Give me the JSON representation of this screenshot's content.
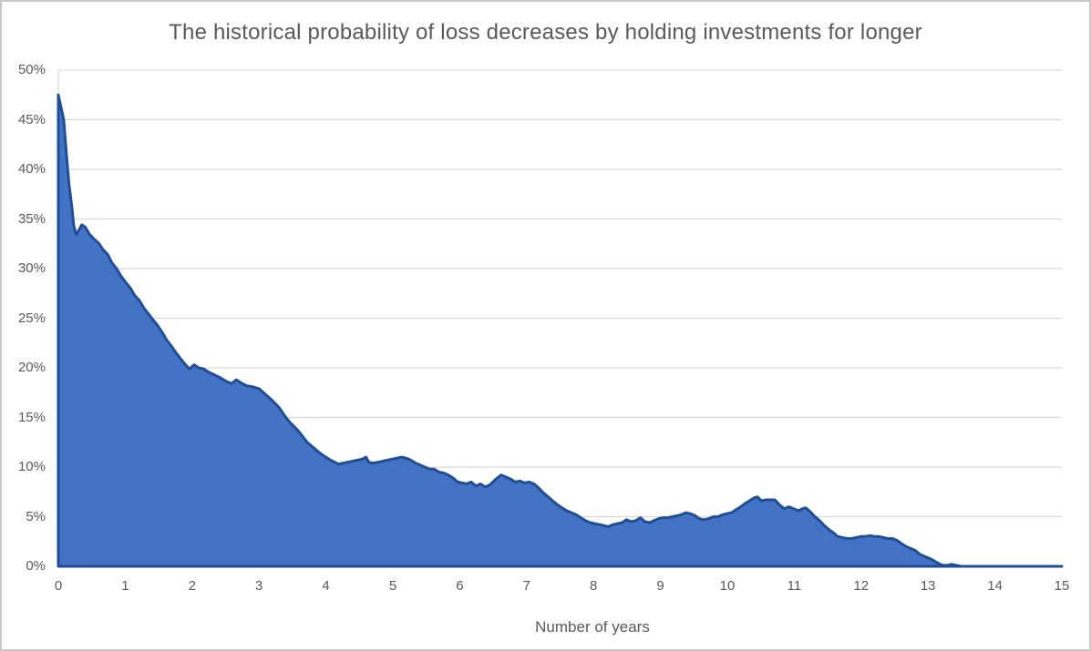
{
  "frame": {
    "background": "#ffffff",
    "border_color": "#c9c9c9"
  },
  "chart_data": {
    "type": "area",
    "title": "The historical probability of loss decreases by holding investments for longer",
    "xlabel": "Number of years",
    "ylabel": "",
    "xlim": [
      0,
      15
    ],
    "ylim": [
      0,
      50
    ],
    "x_ticks": [
      0,
      1,
      2,
      3,
      4,
      5,
      6,
      7,
      8,
      9,
      10,
      11,
      12,
      13,
      14,
      15
    ],
    "x_tick_labels": [
      "0",
      "1",
      "2",
      "3",
      "4",
      "5",
      "6",
      "7",
      "8",
      "9",
      "10",
      "11",
      "12",
      "13",
      "14",
      "15"
    ],
    "y_ticks": [
      0,
      5,
      10,
      15,
      20,
      25,
      30,
      35,
      40,
      45,
      50
    ],
    "y_tick_labels": [
      "0%",
      "5%",
      "10%",
      "15%",
      "20%",
      "25%",
      "30%",
      "35%",
      "40%",
      "45%",
      "50%"
    ],
    "grid": true,
    "legend": false,
    "styles": {
      "area_fill": "#4472c4",
      "area_line": "#1f4e96",
      "grid_color": "#d9d9d9",
      "baseline_color": "#a0a0a0",
      "yaxis_line_color": "#d9d9d9",
      "text_color": "#595959"
    },
    "series": [
      {
        "points": [
          [
            0,
            47.5
          ],
          [
            0.08,
            45
          ],
          [
            0.12,
            41.6
          ],
          [
            0.16,
            38.5
          ],
          [
            0.2,
            36.3
          ],
          [
            0.23,
            34.3
          ],
          [
            0.27,
            33.4
          ],
          [
            0.31,
            33.9
          ],
          [
            0.35,
            34.4
          ],
          [
            0.4,
            34.2
          ],
          [
            0.46,
            33.5
          ],
          [
            0.53,
            33
          ],
          [
            0.6,
            32.6
          ],
          [
            0.67,
            31.9
          ],
          [
            0.74,
            31.4
          ],
          [
            0.8,
            30.6
          ],
          [
            0.87,
            30
          ],
          [
            0.94,
            29.2
          ],
          [
            1.01,
            28.6
          ],
          [
            1.08,
            28
          ],
          [
            1.14,
            27.3
          ],
          [
            1.21,
            26.8
          ],
          [
            1.28,
            26
          ],
          [
            1.35,
            25.4
          ],
          [
            1.42,
            24.8
          ],
          [
            1.48,
            24.3
          ],
          [
            1.55,
            23.6
          ],
          [
            1.62,
            22.8
          ],
          [
            1.69,
            22.2
          ],
          [
            1.76,
            21.5
          ],
          [
            1.83,
            20.9
          ],
          [
            1.9,
            20.3
          ],
          [
            1.96,
            19.9
          ],
          [
            2.03,
            20.3
          ],
          [
            2.1,
            20
          ],
          [
            2.17,
            19.9
          ],
          [
            2.24,
            19.6
          ],
          [
            2.33,
            19.3
          ],
          [
            2.42,
            19
          ],
          [
            2.52,
            18.6
          ],
          [
            2.59,
            18.4
          ],
          [
            2.66,
            18.8
          ],
          [
            2.73,
            18.5
          ],
          [
            2.81,
            18.2
          ],
          [
            2.9,
            18.1
          ],
          [
            3,
            17.9
          ],
          [
            3.1,
            17.3
          ],
          [
            3.2,
            16.7
          ],
          [
            3.3,
            16
          ],
          [
            3.38,
            15.2
          ],
          [
            3.45,
            14.6
          ],
          [
            3.52,
            14.1
          ],
          [
            3.58,
            13.7
          ],
          [
            3.65,
            13.1
          ],
          [
            3.72,
            12.5
          ],
          [
            3.79,
            12.1
          ],
          [
            3.86,
            11.7
          ],
          [
            3.93,
            11.3
          ],
          [
            4,
            11
          ],
          [
            4.07,
            10.7
          ],
          [
            4.13,
            10.5
          ],
          [
            4.19,
            10.3
          ],
          [
            4.26,
            10.4
          ],
          [
            4.33,
            10.5
          ],
          [
            4.4,
            10.6
          ],
          [
            4.47,
            10.7
          ],
          [
            4.54,
            10.8
          ],
          [
            4.6,
            11
          ],
          [
            4.64,
            10.5
          ],
          [
            4.71,
            10.4
          ],
          [
            4.78,
            10.5
          ],
          [
            4.85,
            10.6
          ],
          [
            4.92,
            10.7
          ],
          [
            4.99,
            10.8
          ],
          [
            5.06,
            10.9
          ],
          [
            5.13,
            11
          ],
          [
            5.2,
            10.9
          ],
          [
            5.27,
            10.7
          ],
          [
            5.34,
            10.4
          ],
          [
            5.41,
            10.2
          ],
          [
            5.48,
            10
          ],
          [
            5.55,
            9.8
          ],
          [
            5.62,
            9.8
          ],
          [
            5.69,
            9.5
          ],
          [
            5.76,
            9.4
          ],
          [
            5.83,
            9.2
          ],
          [
            5.9,
            8.9
          ],
          [
            5.97,
            8.5
          ],
          [
            6.04,
            8.4
          ],
          [
            6.1,
            8.3
          ],
          [
            6.17,
            8.5
          ],
          [
            6.24,
            8.1
          ],
          [
            6.31,
            8.3
          ],
          [
            6.38,
            8
          ],
          [
            6.45,
            8.2
          ],
          [
            6.51,
            8.6
          ],
          [
            6.58,
            9
          ],
          [
            6.62,
            9.2
          ],
          [
            6.69,
            9
          ],
          [
            6.76,
            8.8
          ],
          [
            6.83,
            8.5
          ],
          [
            6.9,
            8.6
          ],
          [
            6.97,
            8.4
          ],
          [
            7.04,
            8.5
          ],
          [
            7.11,
            8.3
          ],
          [
            7.18,
            7.9
          ],
          [
            7.25,
            7.4
          ],
          [
            7.32,
            7
          ],
          [
            7.39,
            6.6
          ],
          [
            7.46,
            6.2
          ],
          [
            7.53,
            5.9
          ],
          [
            7.6,
            5.6
          ],
          [
            7.67,
            5.4
          ],
          [
            7.74,
            5.2
          ],
          [
            7.81,
            4.9
          ],
          [
            7.88,
            4.6
          ],
          [
            7.95,
            4.4
          ],
          [
            8.02,
            4.3
          ],
          [
            8.09,
            4.2
          ],
          [
            8.16,
            4.1
          ],
          [
            8.22,
            4
          ],
          [
            8.29,
            4.2
          ],
          [
            8.36,
            4.3
          ],
          [
            8.43,
            4.4
          ],
          [
            8.49,
            4.7
          ],
          [
            8.56,
            4.5
          ],
          [
            8.63,
            4.6
          ],
          [
            8.7,
            4.9
          ],
          [
            8.77,
            4.5
          ],
          [
            8.84,
            4.4
          ],
          [
            8.9,
            4.6
          ],
          [
            8.97,
            4.8
          ],
          [
            9.04,
            4.9
          ],
          [
            9.11,
            4.9
          ],
          [
            9.18,
            5
          ],
          [
            9.25,
            5.1
          ],
          [
            9.31,
            5.2
          ],
          [
            9.38,
            5.4
          ],
          [
            9.45,
            5.3
          ],
          [
            9.52,
            5.1
          ],
          [
            9.58,
            4.8
          ],
          [
            9.65,
            4.7
          ],
          [
            9.72,
            4.8
          ],
          [
            9.79,
            5
          ],
          [
            9.86,
            5
          ],
          [
            9.93,
            5.2
          ],
          [
            9.99,
            5.3
          ],
          [
            10.06,
            5.4
          ],
          [
            10.13,
            5.7
          ],
          [
            10.2,
            6
          ],
          [
            10.26,
            6.3
          ],
          [
            10.33,
            6.6
          ],
          [
            10.4,
            6.9
          ],
          [
            10.45,
            7
          ],
          [
            10.51,
            6.6
          ],
          [
            10.58,
            6.7
          ],
          [
            10.65,
            6.7
          ],
          [
            10.71,
            6.7
          ],
          [
            10.78,
            6.2
          ],
          [
            10.85,
            5.8
          ],
          [
            10.92,
            6
          ],
          [
            10.99,
            5.8
          ],
          [
            11.06,
            5.6
          ],
          [
            11.12,
            5.8
          ],
          [
            11.17,
            5.9
          ],
          [
            11.24,
            5.5
          ],
          [
            11.31,
            5
          ],
          [
            11.38,
            4.6
          ],
          [
            11.45,
            4.1
          ],
          [
            11.52,
            3.7
          ],
          [
            11.58,
            3.4
          ],
          [
            11.65,
            3
          ],
          [
            11.72,
            2.9
          ],
          [
            11.79,
            2.8
          ],
          [
            11.86,
            2.8
          ],
          [
            11.93,
            2.9
          ],
          [
            11.99,
            3
          ],
          [
            12.06,
            3
          ],
          [
            12.13,
            3.1
          ],
          [
            12.2,
            3
          ],
          [
            12.27,
            3
          ],
          [
            12.33,
            2.9
          ],
          [
            12.4,
            2.8
          ],
          [
            12.47,
            2.8
          ],
          [
            12.54,
            2.6
          ],
          [
            12.6,
            2.3
          ],
          [
            12.67,
            2
          ],
          [
            12.74,
            1.8
          ],
          [
            12.81,
            1.6
          ],
          [
            12.88,
            1.2
          ],
          [
            12.95,
            1
          ],
          [
            13.02,
            0.8
          ],
          [
            13.08,
            0.6
          ],
          [
            13.15,
            0.3
          ],
          [
            13.22,
            0.1
          ],
          [
            13.29,
            0.1
          ],
          [
            13.36,
            0.2
          ],
          [
            13.42,
            0.1
          ],
          [
            13.49,
            0
          ],
          [
            13.7,
            0
          ],
          [
            14,
            0
          ],
          [
            14.5,
            0
          ],
          [
            15,
            0
          ]
        ]
      }
    ]
  }
}
